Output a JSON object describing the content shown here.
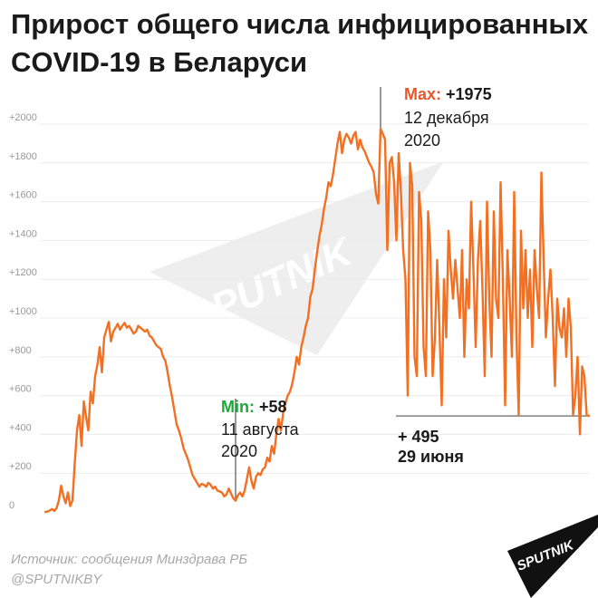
{
  "title_lines": [
    "Прирост общего числа инфицированных",
    "COVID-19 в Беларуси"
  ],
  "footer": {
    "source": "Источник: сообщения Минздрава РБ",
    "handle": "@SPUTNIKBY"
  },
  "watermark": "SPUTNIK",
  "logo": "SPUTNIK",
  "colors": {
    "line": "#f36f21",
    "max_label": "#e8562a",
    "min_label": "#1aaa35",
    "axis_text": "#999999",
    "grid": "#ececec",
    "watermark": "#eeeeee",
    "title": "#1a1a1a"
  },
  "annotations": {
    "max": {
      "label": "Max:",
      "value": "+1975",
      "line1": "12 декабря",
      "line2": "2020"
    },
    "min": {
      "label": "Min:",
      "value": "+58",
      "line1": "11 августа",
      "line2": "2020"
    },
    "last": {
      "value": "+ 495",
      "line1": "29 июня"
    }
  },
  "chart_data": {
    "type": "line",
    "ylim": [
      0,
      2100
    ],
    "ytick_values": [
      0,
      200,
      400,
      600,
      800,
      1000,
      1200,
      1400,
      1600,
      1800,
      2000
    ],
    "yticks": [
      "0",
      "+200",
      "+400",
      "+600",
      "+800",
      "+1000",
      "+1200",
      "+1400",
      "+1600",
      "+1800",
      "+2000"
    ],
    "grid": true,
    "series": [
      {
        "values": [
          0,
          2,
          8,
          15,
          5,
          20,
          60,
          135,
          80,
          45,
          100,
          30,
          60,
          250,
          420,
          500,
          340,
          570,
          490,
          420,
          620,
          560,
          700,
          760,
          850,
          720,
          900,
          940,
          980,
          880,
          930,
          950,
          970,
          940,
          960,
          975,
          950,
          960,
          940,
          920,
          930,
          960,
          950,
          940,
          930,
          940,
          910,
          900,
          880,
          860,
          850,
          840,
          800,
          780,
          720,
          650,
          590,
          520,
          450,
          420,
          380,
          330,
          300,
          270,
          230,
          190,
          170,
          150,
          130,
          145,
          140,
          130,
          150,
          140,
          120,
          130,
          110,
          105,
          100,
          80,
          90,
          120,
          95,
          70,
          58,
          85,
          100,
          80,
          110,
          170,
          230,
          160,
          120,
          180,
          200,
          190,
          220,
          230,
          280,
          260,
          340,
          300,
          400,
          480,
          420,
          510,
          560,
          600,
          620,
          660,
          720,
          800,
          760,
          850,
          900,
          960,
          1000,
          1110,
          1150,
          1250,
          1340,
          1420,
          1480,
          1560,
          1620,
          1700,
          1680,
          1740,
          1820,
          1900,
          1960,
          1850,
          1920,
          1950,
          1930,
          1900,
          1940,
          1960,
          1870,
          1920,
          1880,
          1860,
          1830,
          1800,
          1780,
          1750,
          1640,
          1590,
          1975,
          1950,
          1920,
          1350,
          1800,
          1830,
          1700,
          1400,
          1850,
          1650,
          1350,
          1200,
          600,
          1800,
          1680,
          800,
          700,
          1650,
          1500,
          850,
          700,
          1550,
          1350,
          700,
          900,
          1300,
          950,
          550,
          1200,
          900,
          1450,
          1250,
          1100,
          1300,
          1150,
          1000,
          1350,
          800,
          1200,
          1050,
          1600,
          1250,
          850,
          1300,
          1500,
          1150,
          700,
          1600,
          1100,
          800,
          1550,
          1100,
          1000,
          1700,
          1200,
          550,
          1350,
          1100,
          800,
          1650,
          900,
          500,
          1450,
          1050,
          1350,
          1000,
          1250,
          850,
          1350,
          1150,
          1000,
          1750,
          1300,
          900,
          1100,
          1250,
          1000,
          650,
          1100,
          950,
          900,
          1050,
          800,
          1100,
          950,
          500,
          600,
          800,
          400,
          750,
          700,
          500,
          495
        ]
      }
    ]
  }
}
